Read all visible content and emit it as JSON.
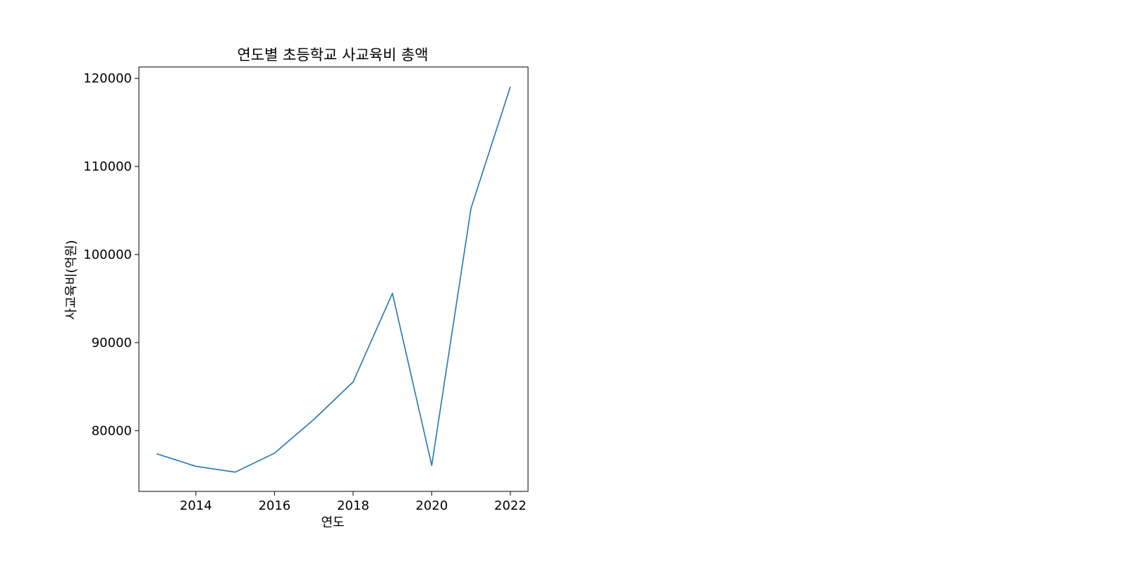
{
  "chart_data": {
    "type": "line",
    "title": "연도별 초등학교 사교육비 총액",
    "xlabel": "연도",
    "ylabel": "사교육비(억원)",
    "x": [
      2013,
      2014,
      2015,
      2016,
      2017,
      2018,
      2019,
      2020,
      2021,
      2022
    ],
    "series": [
      {
        "values": [
          77375,
          75948,
          75287,
          77438,
          81267,
          85531,
          95597,
          76046,
          105270,
          119055
        ],
        "color": "#1f77b4"
      }
    ],
    "xlim": [
      2012.55,
      2022.45
    ],
    "ylim": [
      73100,
      121300
    ],
    "xticks": [
      2014,
      2016,
      2018,
      2020,
      2022
    ],
    "xtick_labels": [
      "2014",
      "2016",
      "2018",
      "2020",
      "2022"
    ],
    "yticks": [
      80000,
      90000,
      100000,
      110000,
      120000
    ],
    "ytick_labels": [
      "80000",
      "90000",
      "100000",
      "110000",
      "120000"
    ],
    "grid": false,
    "legend": false
  }
}
